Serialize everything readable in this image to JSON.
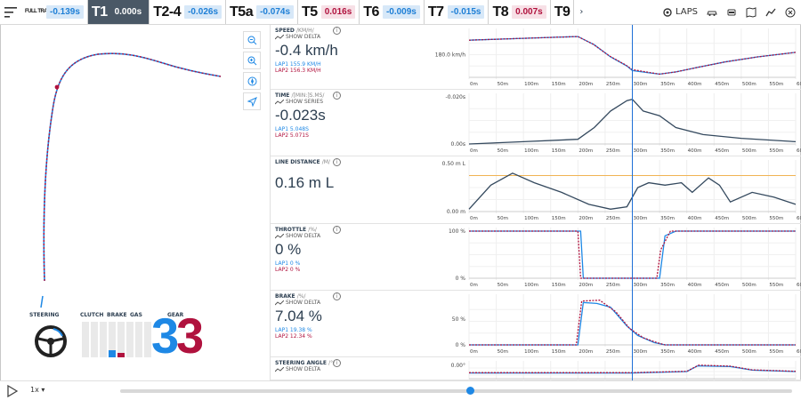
{
  "sectors": [
    {
      "name": "FULL TRACK",
      "value": "-0.139s",
      "tone": "blue"
    },
    {
      "name": "T1",
      "value": "0.000s",
      "tone": "white",
      "active": true
    },
    {
      "name": "T2-4",
      "value": "-0.026s",
      "tone": "blue"
    },
    {
      "name": "T5a",
      "value": "-0.074s",
      "tone": "blue"
    },
    {
      "name": "T5",
      "value": "0.016s",
      "tone": "red"
    },
    {
      "name": "T6",
      "value": "-0.009s",
      "tone": "blue"
    },
    {
      "name": "T7",
      "value": "-0.015s",
      "tone": "blue"
    },
    {
      "name": "T8",
      "value": "0.007s",
      "tone": "red"
    },
    {
      "name": "T9",
      "value": "",
      "tone": "blue"
    }
  ],
  "header": {
    "laps_label": "LAPS",
    "chevron": "›"
  },
  "inputs": {
    "steering_label": "STEERING",
    "clutch_label": "CLUTCH",
    "brake_label": "BRAKE",
    "gas_label": "GAS",
    "gear_label": "GEAR",
    "gear_lap1": "3",
    "gear_lap2": "3",
    "brake_lap1": 0.19,
    "brake_lap2": 0.12,
    "colors": {
      "lap1": "#1e88e5",
      "lap2": "#b0123e"
    }
  },
  "x_ticks": [
    "0m",
    "50m",
    "100m",
    "150m",
    "200m",
    "250m",
    "300m",
    "350m",
    "400m",
    "450m",
    "500m",
    "550m",
    "600m"
  ],
  "channels": [
    {
      "title": "SPEED",
      "unit": "/KM/H/",
      "sub": "SHOW DELTA",
      "value": "-0.4 km/h",
      "lap1": "LAP1 155.9 KM/H",
      "lap2": "LAP2 156.3 KM/H",
      "y_labels": [
        "180.0 km/h"
      ]
    },
    {
      "title": "TIME",
      "unit": "/[MIN:]S.MS/",
      "sub": "SHOW SERIES",
      "value": "-0.023s",
      "lap1": "LAP1 5.048S",
      "lap2": "LAP2 5.071S",
      "y_labels": [
        "-0.020s",
        "0.00s"
      ]
    },
    {
      "title": "LINE DISTANCE",
      "unit": "/M/",
      "sub": "",
      "value": "0.16 m L",
      "lap1": "",
      "lap2": "",
      "y_labels": [
        "0.50 m L",
        "0.00 m"
      ]
    },
    {
      "title": "THROTTLE",
      "unit": "/%/",
      "sub": "SHOW DELTA",
      "value": "0 %",
      "lap1": "LAP1 0 %",
      "lap2": "LAP2 0 %",
      "y_labels": [
        "100 %",
        "0 %"
      ]
    },
    {
      "title": "BRAKE",
      "unit": "/%/",
      "sub": "SHOW DELTA",
      "value": "7.04 %",
      "lap1": "LAP1 19.38 %",
      "lap2": "LAP2 12.34 %",
      "y_labels": [
        "50 %",
        "0 %"
      ]
    },
    {
      "title": "STEERING ANGLE",
      "unit": "/°/",
      "sub": "SHOW DELTA",
      "value": "",
      "lap1": "",
      "lap2": "",
      "y_labels": [
        "0.00°"
      ]
    }
  ],
  "player": {
    "speed": "1x ▾",
    "position": 0.52
  },
  "cursor_m": 300
}
